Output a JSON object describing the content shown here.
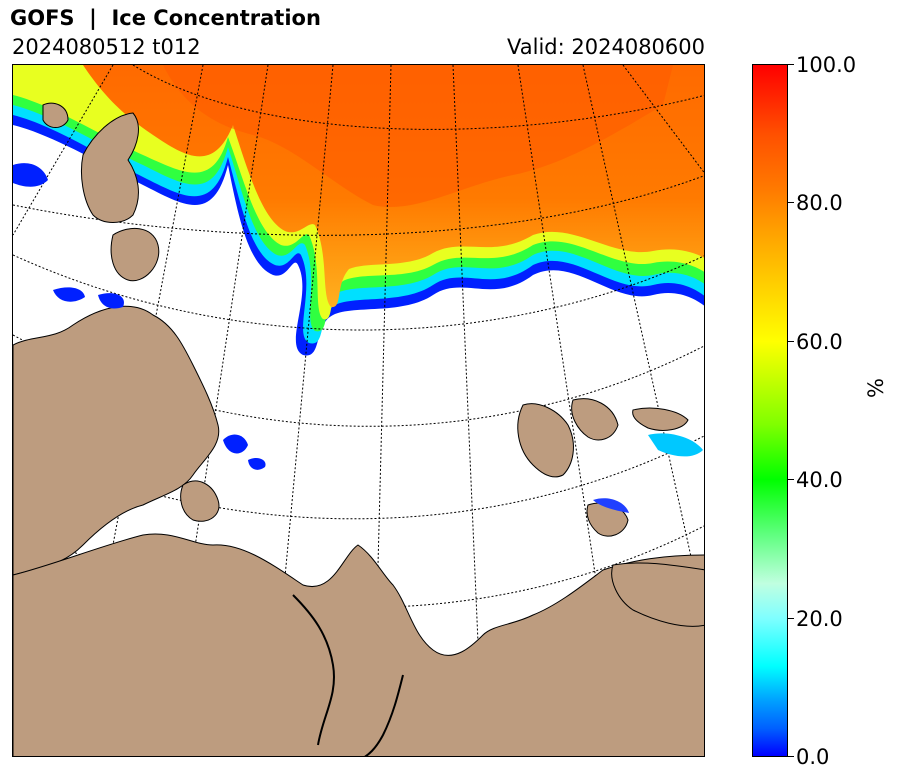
{
  "title": {
    "model": "GOFS",
    "separator": "|",
    "variable": "Ice Concentration",
    "text": "GOFS  |  Ice Concentration"
  },
  "run": "2024080512 t012",
  "valid": "Valid: 2024080600",
  "colorbar": {
    "unit": "%",
    "min": 0.0,
    "max": 100.0,
    "ticks": [
      "0.0",
      "20.0",
      "40.0",
      "60.0",
      "80.0",
      "100.0"
    ],
    "colors": {
      "low": "#0000ff",
      "cyan": "#00ffff",
      "green": "#00ff00",
      "yellow": "#ffff00",
      "orange": "#ff8000",
      "high": "#ff0000"
    }
  },
  "map": {
    "land_color": "#bd9c7f",
    "ocean_color": "#ffffff",
    "graticule": "dotted"
  }
}
